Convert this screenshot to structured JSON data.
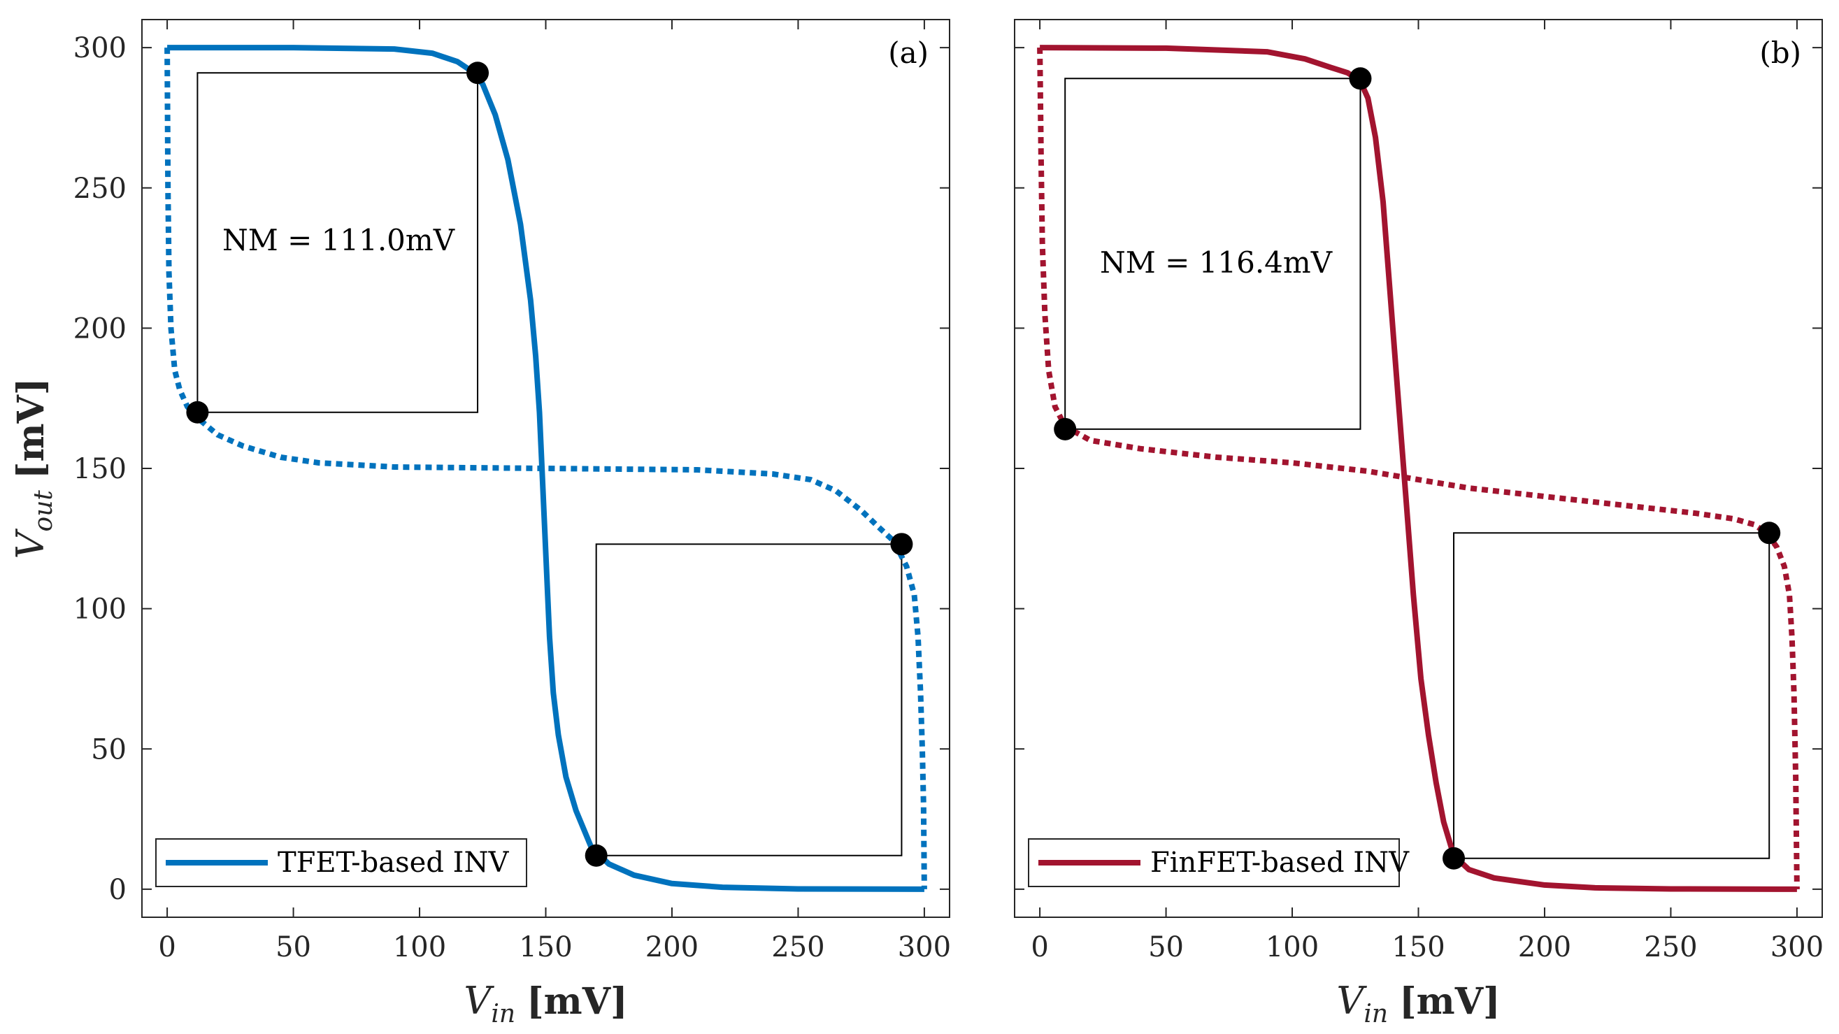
{
  "chart_data": [
    {
      "type": "line",
      "panel_label": "(a)",
      "xlabel": {
        "base": "V",
        "sub": "in",
        "unit": "[mV]"
      },
      "ylabel": {
        "base": "V",
        "sub": "out",
        "unit": "[mV]"
      },
      "xlim": [
        -10,
        310
      ],
      "ylim": [
        -10,
        310
      ],
      "xticks": [
        0,
        50,
        100,
        150,
        200,
        250,
        300
      ],
      "yticks": [
        0,
        50,
        100,
        150,
        200,
        250,
        300
      ],
      "color": "#0072BD",
      "legend": {
        "label": "TFET-based INV",
        "position": "bottom-left"
      },
      "annotation": "NM = 111.0mV",
      "series": [
        {
          "name": "TFET-based INV",
          "style": "solid",
          "points": [
            [
              0,
              300
            ],
            [
              50,
              300
            ],
            [
              90,
              299.5
            ],
            [
              105,
              298
            ],
            [
              115,
              295
            ],
            [
              120,
              292
            ],
            [
              125,
              287
            ],
            [
              130,
              276
            ],
            [
              135,
              260
            ],
            [
              140,
              237
            ],
            [
              144,
              210
            ],
            [
              146,
              190
            ],
            [
              147.5,
              170
            ],
            [
              148.5,
              150
            ],
            [
              149.5,
              130
            ],
            [
              150.5,
              110
            ],
            [
              151.5,
              90
            ],
            [
              153,
              70
            ],
            [
              155,
              55
            ],
            [
              158,
              40
            ],
            [
              162,
              28
            ],
            [
              168,
              15
            ],
            [
              175,
              9
            ],
            [
              185,
              5
            ],
            [
              200,
              2
            ],
            [
              220,
              0.7
            ],
            [
              250,
              0.1
            ],
            [
              300,
              0
            ]
          ]
        },
        {
          "name": "mirrored curve",
          "style": "dotted",
          "points": [
            [
              0,
              300
            ],
            [
              0.3,
              250
            ],
            [
              0.7,
              220
            ],
            [
              1.5,
              200
            ],
            [
              3,
              185
            ],
            [
              5,
              178
            ],
            [
              8,
              172
            ],
            [
              12,
              168
            ],
            [
              20,
              162
            ],
            [
              30,
              158
            ],
            [
              45,
              154
            ],
            [
              60,
              152
            ],
            [
              90,
              150.5
            ],
            [
              150,
              150
            ],
            [
              210,
              149.5
            ],
            [
              240,
              148
            ],
            [
              255,
              146
            ],
            [
              265,
              142
            ],
            [
              275,
              135
            ],
            [
              282,
              129
            ],
            [
              288,
              124
            ],
            [
              293,
              115
            ],
            [
              296,
              105
            ],
            [
              297.5,
              90
            ],
            [
              298.5,
              70
            ],
            [
              299.2,
              50
            ],
            [
              299.7,
              30
            ],
            [
              300,
              0
            ]
          ]
        }
      ],
      "markers": [
        [
          12,
          170
        ],
        [
          123,
          291
        ],
        [
          170,
          12
        ],
        [
          291,
          123
        ]
      ],
      "boxes": [
        {
          "x0": 12,
          "x1": 123,
          "y0": 170,
          "y1": 291
        },
        {
          "x0": 170,
          "x1": 291,
          "y0": 12,
          "y1": 123
        }
      ]
    },
    {
      "type": "line",
      "panel_label": "(b)",
      "xlabel": {
        "base": "V",
        "sub": "in",
        "unit": "[mV]"
      },
      "ylabel": null,
      "xlim": [
        -10,
        310
      ],
      "ylim": [
        -10,
        310
      ],
      "xticks": [
        0,
        50,
        100,
        150,
        200,
        250,
        300
      ],
      "yticks": [
        0,
        50,
        100,
        150,
        200,
        250,
        300
      ],
      "color": "#A2142F",
      "legend": {
        "label": "FinFET-based INV",
        "position": "bottom-left"
      },
      "annotation": "NM = 116.4mV",
      "series": [
        {
          "name": "FinFET-based INV",
          "style": "solid",
          "points": [
            [
              0,
              300
            ],
            [
              50,
              299.8
            ],
            [
              90,
              298.5
            ],
            [
              105,
              296
            ],
            [
              115,
              293
            ],
            [
              122,
              291
            ],
            [
              127,
              288
            ],
            [
              130,
              282
            ],
            [
              133,
              268
            ],
            [
              136,
              245
            ],
            [
              139,
              210
            ],
            [
              142,
              175
            ],
            [
              145,
              140
            ],
            [
              148,
              105
            ],
            [
              151,
              75
            ],
            [
              154,
              55
            ],
            [
              157,
              38
            ],
            [
              160,
              24
            ],
            [
              164,
              12
            ],
            [
              170,
              7
            ],
            [
              180,
              4
            ],
            [
              200,
              1.5
            ],
            [
              220,
              0.5
            ],
            [
              250,
              0.1
            ],
            [
              300,
              0
            ]
          ]
        },
        {
          "name": "mirrored curve",
          "style": "dotted",
          "points": [
            [
              0,
              300
            ],
            [
              0.5,
              260
            ],
            [
              1,
              230
            ],
            [
              2,
              205
            ],
            [
              3.5,
              185
            ],
            [
              6,
              172
            ],
            [
              10,
              165
            ],
            [
              20,
              160
            ],
            [
              40,
              157
            ],
            [
              70,
              154
            ],
            [
              100,
              152
            ],
            [
              130,
              149
            ],
            [
              150,
              146
            ],
            [
              170,
              143
            ],
            [
              200,
              140
            ],
            [
              230,
              137
            ],
            [
              260,
              134
            ],
            [
              275,
              132
            ],
            [
              283,
              130
            ],
            [
              288,
              127
            ],
            [
              292,
              122
            ],
            [
              295,
              115
            ],
            [
              297,
              105
            ],
            [
              298,
              90
            ],
            [
              298.8,
              70
            ],
            [
              299.5,
              40
            ],
            [
              300,
              0
            ]
          ]
        }
      ],
      "markers": [
        [
          10,
          164
        ],
        [
          127,
          289
        ],
        [
          164,
          11
        ],
        [
          289,
          127
        ]
      ],
      "boxes": [
        {
          "x0": 10,
          "x1": 127,
          "y0": 164,
          "y1": 289
        },
        {
          "x0": 164,
          "x1": 289,
          "y0": 11,
          "y1": 127
        }
      ]
    }
  ]
}
